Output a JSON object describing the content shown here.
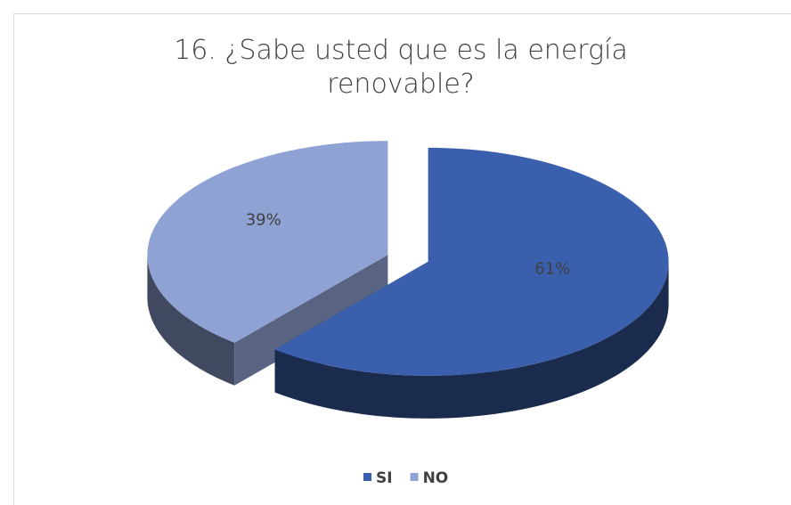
{
  "chart_data": {
    "type": "pie",
    "title": "16. ¿Sabe usted que es la energía renovable?",
    "categories": [
      "SI",
      "NO"
    ],
    "values": [
      61,
      39
    ],
    "value_labels": [
      "61%",
      "39%"
    ],
    "colors": [
      "#3a5fad",
      "#8fa2d4"
    ],
    "legend": "bottom"
  }
}
